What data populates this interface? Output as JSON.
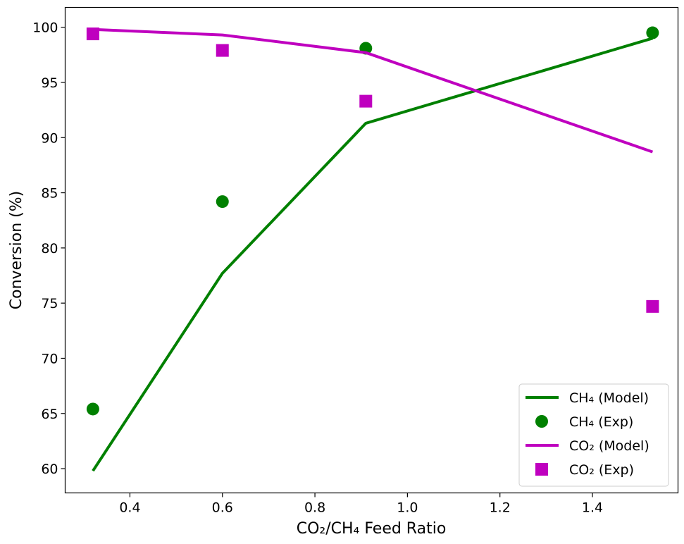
{
  "chart_data": {
    "type": "line",
    "xlabel": "CO₂/CH₄ Feed Ratio",
    "ylabel": "Conversion (%)",
    "xlim": [
      0.26,
      1.585
    ],
    "ylim": [
      57.8,
      101.8
    ],
    "xticks": [
      "0.4",
      "0.6",
      "0.8",
      "1.0",
      "1.2",
      "1.4"
    ],
    "xtick_values": [
      0.4,
      0.6,
      0.8,
      1.0,
      1.2,
      1.4
    ],
    "yticks": [
      "60",
      "65",
      "70",
      "75",
      "80",
      "85",
      "90",
      "95",
      "100"
    ],
    "ytick_values": [
      60,
      65,
      70,
      75,
      80,
      85,
      90,
      95,
      100
    ],
    "grid": false,
    "legend_position": "lower-right",
    "series": [
      {
        "name": "CH₄ (Model)",
        "kind": "line",
        "color": "#008000",
        "x": [
          0.32,
          0.6,
          0.91,
          1.53
        ],
        "y": [
          59.8,
          77.7,
          91.3,
          99.0
        ]
      },
      {
        "name": "CH₄ (Exp)",
        "kind": "scatter",
        "marker": "circle",
        "color": "#008000",
        "x": [
          0.32,
          0.6,
          0.91,
          1.53
        ],
        "y": [
          65.4,
          84.2,
          98.1,
          99.5
        ]
      },
      {
        "name": "CO₂ (Model)",
        "kind": "line",
        "color": "#bf00bf",
        "x": [
          0.32,
          0.6,
          0.91,
          1.53
        ],
        "y": [
          99.8,
          99.3,
          97.7,
          88.7
        ]
      },
      {
        "name": "CO₂ (Exp)",
        "kind": "scatter",
        "marker": "square",
        "color": "#bf00bf",
        "x": [
          0.32,
          0.6,
          0.91,
          1.53
        ],
        "y": [
          99.4,
          97.9,
          93.3,
          74.7
        ]
      }
    ]
  }
}
